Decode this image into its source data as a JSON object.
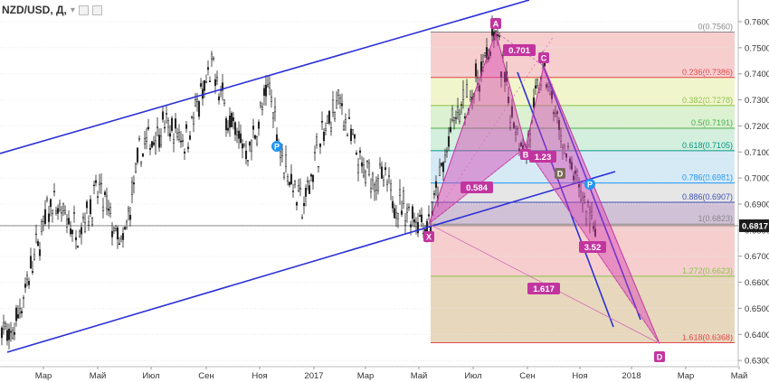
{
  "header": {
    "symbol": "NZD/USD, Д,",
    "caret": "▾"
  },
  "price_label": "0.6817",
  "chart_data": {
    "type": "candlestick",
    "y_ticks": [
      "0.7600",
      "0.7500",
      "0.7400",
      "0.7300",
      "0.7200",
      "0.7100",
      "0.7000",
      "0.6900",
      "0.6800",
      "0.6700",
      "0.6600",
      "0.6500",
      "0.6400",
      "0.6300"
    ],
    "y_tick_values": [
      0.76,
      0.75,
      0.74,
      0.73,
      0.72,
      0.71,
      0.7,
      0.69,
      0.68,
      0.67,
      0.66,
      0.65,
      0.64,
      0.63
    ],
    "ylim": [
      0.6262,
      0.7625
    ],
    "x_ticks": [
      "Мар",
      "Май",
      "Июл",
      "Сен",
      "Ноя",
      "2017",
      "Мар",
      "Май",
      "Июл",
      "Сен",
      "Ноя",
      "2018",
      "Мар",
      "Май"
    ],
    "current_price": 0.6817,
    "fib_levels": [
      {
        "label": "0(0.7560)",
        "value": 0.756,
        "color": "#888888",
        "fill": "#f4c6c6"
      },
      {
        "label": "0.236(0.7386)",
        "value": 0.7386,
        "color": "#e0474c",
        "fill": "#eef3c2"
      },
      {
        "label": "0.382(0.7278)",
        "value": 0.7278,
        "color": "#8bc34a",
        "fill": "#d5efc9"
      },
      {
        "label": "0.5(0.7191)",
        "value": 0.7191,
        "color": "#4caf50",
        "fill": "#cdecd8"
      },
      {
        "label": "0.618(0.7105)",
        "value": 0.7105,
        "color": "#009688",
        "fill": "#cfe6f5"
      },
      {
        "label": "0.786(0.6981)",
        "value": 0.6981,
        "color": "#2196f3",
        "fill": "#e2e2e2"
      },
      {
        "label": "0.886(0.6907)",
        "value": 0.6907,
        "color": "#3f51b5",
        "fill": "#c9b6cf"
      },
      {
        "label": "1(0.6823)",
        "value": 0.6823,
        "color": "#888888",
        "fill": "#f4c6c6"
      },
      {
        "label": "1.272(0.6623)",
        "value": 0.6623,
        "color": "#8bc34a",
        "fill": "#e3d0b0"
      },
      {
        "label": "1.618(0.6368)",
        "value": 0.6368,
        "color": "#e0474c",
        "fill": null
      }
    ],
    "pattern_points": [
      {
        "name": "X",
        "value": 0.6824
      },
      {
        "name": "A",
        "value": 0.756
      },
      {
        "name": "B",
        "value": 0.7118
      },
      {
        "name": "C",
        "value": 0.743
      },
      {
        "name": "D",
        "value": 0.6365
      }
    ],
    "ratios": [
      {
        "label": "0.701"
      },
      {
        "label": "1.23"
      },
      {
        "label": "0.584"
      },
      {
        "label": "3.52"
      },
      {
        "label": "1.617"
      }
    ],
    "markers": [
      {
        "label": "P",
        "kind": "pivot"
      },
      {
        "label": "P",
        "kind": "pivot"
      },
      {
        "label": "D",
        "kind": "point"
      }
    ]
  }
}
